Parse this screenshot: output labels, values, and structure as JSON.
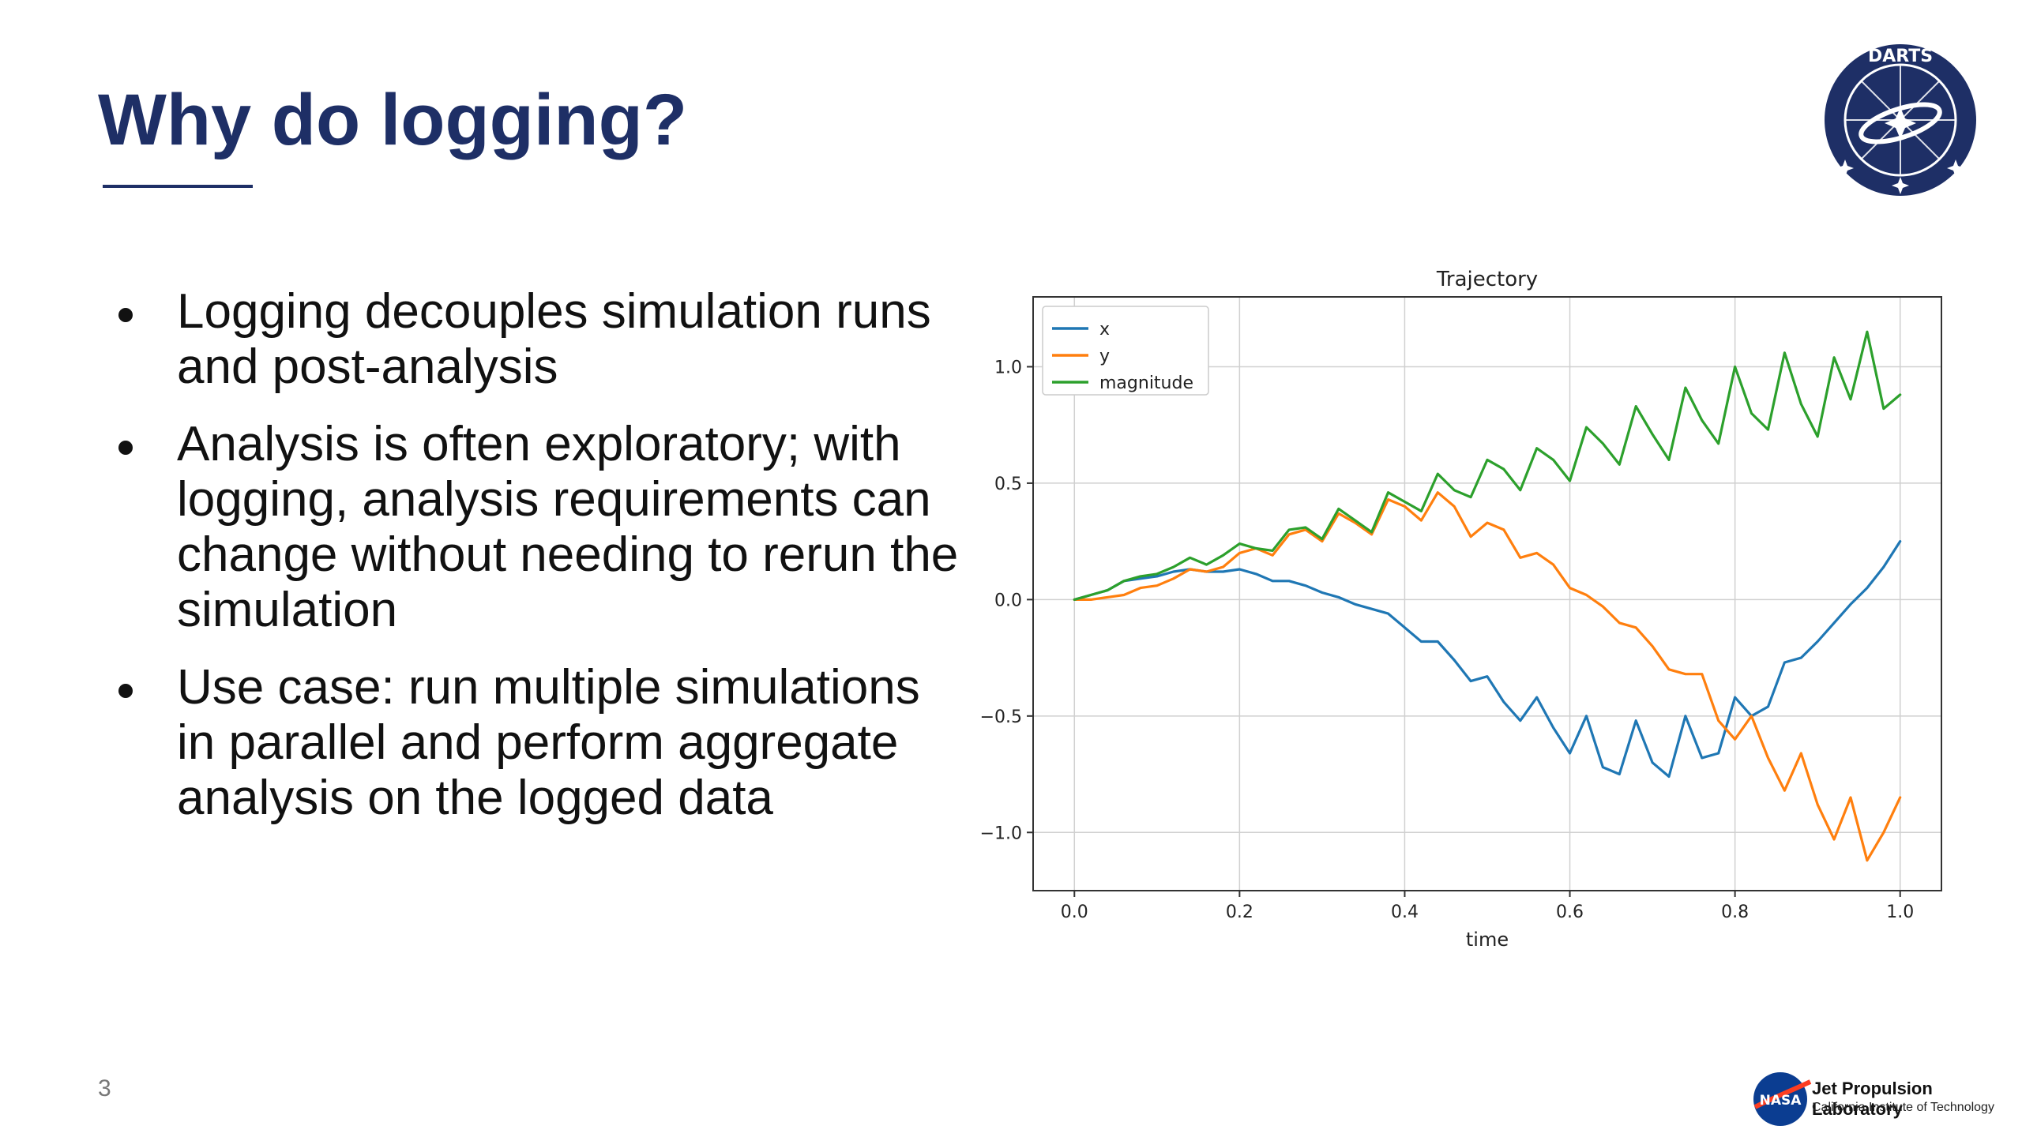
{
  "slide": {
    "title": "Why do logging?",
    "page_number": "3",
    "bullets": [
      {
        "text": "Logging decouples simulation runs and post-analysis"
      },
      {
        "text": "Analysis is often exploratory; with logging, analysis requirements can change without needing to rerun the simulation"
      },
      {
        "text": "Use case: run multiple simulations in parallel and perform aggregate analysis on the logged data"
      }
    ],
    "logos": {
      "darts_letters": "DARTS",
      "jpl_name": "Jet Propulsion Laboratory",
      "jpl_subtitle": "California Institute of Technology",
      "nasa": "NASA"
    }
  },
  "chart_data": {
    "type": "line",
    "title": "Trajectory",
    "xlabel": "time",
    "ylabel": "",
    "xlim": [
      -0.05,
      1.05
    ],
    "ylim": [
      -1.25,
      1.3
    ],
    "xticks": [
      0.0,
      0.2,
      0.4,
      0.6,
      0.8,
      1.0
    ],
    "xtick_labels": [
      "0.0",
      "0.2",
      "0.4",
      "0.6",
      "0.8",
      "1.0"
    ],
    "yticks": [
      -1.0,
      -0.5,
      0.0,
      0.5,
      1.0
    ],
    "ytick_labels": [
      "−1.0",
      "−0.5",
      "0.0",
      "0.5",
      "1.0"
    ],
    "grid": true,
    "legend_position": "top-left",
    "x": [
      0.0,
      0.02,
      0.04,
      0.06,
      0.08,
      0.1,
      0.12,
      0.14,
      0.16,
      0.18,
      0.2,
      0.22,
      0.24,
      0.26,
      0.28,
      0.3,
      0.32,
      0.34,
      0.36,
      0.38,
      0.4,
      0.42,
      0.44,
      0.46,
      0.48,
      0.5,
      0.52,
      0.54,
      0.56,
      0.58,
      0.6,
      0.62,
      0.64,
      0.66,
      0.68,
      0.7,
      0.72,
      0.74,
      0.76,
      0.78,
      0.8,
      0.82,
      0.84,
      0.86,
      0.88,
      0.9,
      0.92,
      0.94,
      0.96,
      0.98,
      1.0
    ],
    "series": [
      {
        "name": "x",
        "color": "#1f77b4",
        "values": [
          0.0,
          0.02,
          0.04,
          0.08,
          0.09,
          0.1,
          0.12,
          0.13,
          0.12,
          0.12,
          0.13,
          0.11,
          0.08,
          0.08,
          0.06,
          0.03,
          0.01,
          -0.02,
          -0.04,
          -0.06,
          -0.12,
          -0.18,
          -0.18,
          -0.26,
          -0.35,
          -0.33,
          -0.44,
          -0.52,
          -0.42,
          -0.55,
          -0.66,
          -0.5,
          -0.72,
          -0.75,
          -0.52,
          -0.7,
          -0.76,
          -0.5,
          -0.68,
          -0.66,
          -0.42,
          -0.5,
          -0.46,
          -0.27,
          -0.25,
          -0.18,
          -0.1,
          -0.02,
          0.05,
          0.14,
          0.25
        ]
      },
      {
        "name": "y",
        "color": "#ff7f0e",
        "values": [
          0.0,
          0.0,
          0.01,
          0.02,
          0.05,
          0.06,
          0.09,
          0.13,
          0.12,
          0.14,
          0.2,
          0.22,
          0.19,
          0.28,
          0.3,
          0.25,
          0.37,
          0.33,
          0.28,
          0.43,
          0.4,
          0.34,
          0.46,
          0.4,
          0.27,
          0.33,
          0.3,
          0.18,
          0.2,
          0.15,
          0.05,
          0.02,
          -0.03,
          -0.1,
          -0.12,
          -0.2,
          -0.3,
          -0.32,
          -0.32,
          -0.52,
          -0.6,
          -0.5,
          -0.68,
          -0.82,
          -0.66,
          -0.88,
          -1.03,
          -0.85,
          -1.12,
          -1.0,
          -0.85
        ]
      },
      {
        "name": "magnitude",
        "color": "#2ca02c",
        "values": [
          0.0,
          0.02,
          0.04,
          0.08,
          0.1,
          0.11,
          0.14,
          0.18,
          0.15,
          0.19,
          0.24,
          0.22,
          0.21,
          0.3,
          0.31,
          0.26,
          0.39,
          0.34,
          0.29,
          0.46,
          0.42,
          0.38,
          0.54,
          0.47,
          0.44,
          0.6,
          0.56,
          0.47,
          0.65,
          0.6,
          0.51,
          0.74,
          0.67,
          0.58,
          0.83,
          0.71,
          0.6,
          0.91,
          0.77,
          0.67,
          1.0,
          0.8,
          0.73,
          1.06,
          0.84,
          0.7,
          1.04,
          0.86,
          1.15,
          0.82,
          0.88
        ]
      }
    ]
  }
}
